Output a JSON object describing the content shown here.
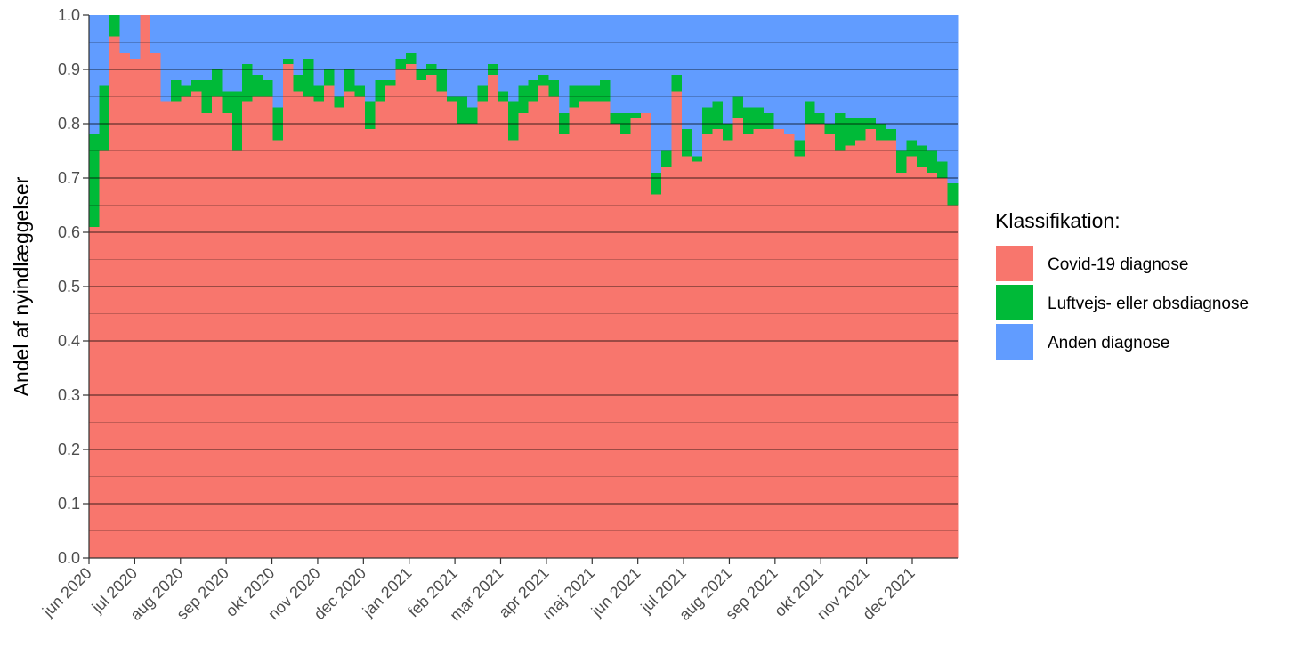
{
  "chart_data": {
    "type": "bar",
    "stacked": true,
    "title": "",
    "xlabel": "",
    "ylabel": "Andel af nyindlæggelser",
    "ylim": [
      0,
      1
    ],
    "yticks": [
      "0.0",
      "0.1",
      "0.2",
      "0.3",
      "0.4",
      "0.5",
      "0.6",
      "0.7",
      "0.8",
      "0.9",
      "1.0"
    ],
    "xtick_labels": [
      "jun 2020",
      "jul 2020",
      "aug 2020",
      "sep 2020",
      "okt 2020",
      "nov 2020",
      "dec 2020",
      "jan 2021",
      "feb 2021",
      "mar 2021",
      "apr 2021",
      "maj 2021",
      "jun 2021",
      "jul 2021",
      "aug 2021",
      "sep 2021",
      "okt 2021",
      "nov 2021",
      "dec 2021"
    ],
    "x_unit": "week",
    "grid": "horizontal",
    "legend": {
      "title": "Klassifikation:",
      "position": "right",
      "entries": [
        "Covid-19 diagnose",
        "Luftvejs- eller obsdiagnose",
        "Anden diagnose"
      ]
    },
    "colors": {
      "covid": "#F8766D",
      "luftvejs": "#00BA38",
      "anden": "#619CFF"
    },
    "series": [
      {
        "name": "Covid-19 diagnose",
        "values": [
          0.61,
          0.75,
          0.96,
          0.93,
          0.92,
          1.0,
          0.93,
          0.84,
          0.84,
          0.85,
          0.86,
          0.82,
          0.85,
          0.82,
          0.75,
          0.84,
          0.85,
          0.85,
          0.77,
          0.91,
          0.86,
          0.85,
          0.84,
          0.87,
          0.83,
          0.86,
          0.85,
          0.79,
          0.84,
          0.87,
          0.9,
          0.91,
          0.88,
          0.89,
          0.86,
          0.84,
          0.8,
          0.8,
          0.84,
          0.89,
          0.84,
          0.77,
          0.82,
          0.84,
          0.87,
          0.85,
          0.78,
          0.83,
          0.84,
          0.84,
          0.84,
          0.8,
          0.78,
          0.81,
          0.82,
          0.67,
          0.72,
          0.86,
          0.74,
          0.73,
          0.78,
          0.79,
          0.77,
          0.81,
          0.78,
          0.79,
          0.79,
          0.79,
          0.78,
          0.74,
          0.8,
          0.8,
          0.78,
          0.75,
          0.76,
          0.77,
          0.79,
          0.77,
          0.77,
          0.71,
          0.74,
          0.72,
          0.71,
          0.7,
          0.65
        ]
      },
      {
        "name": "Luftvejs- eller obsdiagnose",
        "values": [
          0.17,
          0.12,
          0.04,
          0.0,
          0.0,
          0.0,
          0.0,
          0.0,
          0.04,
          0.02,
          0.02,
          0.06,
          0.05,
          0.04,
          0.11,
          0.07,
          0.04,
          0.03,
          0.06,
          0.01,
          0.03,
          0.07,
          0.03,
          0.03,
          0.02,
          0.04,
          0.02,
          0.05,
          0.04,
          0.01,
          0.02,
          0.02,
          0.02,
          0.02,
          0.04,
          0.01,
          0.05,
          0.03,
          0.03,
          0.02,
          0.02,
          0.07,
          0.05,
          0.04,
          0.02,
          0.03,
          0.04,
          0.04,
          0.03,
          0.03,
          0.04,
          0.02,
          0.04,
          0.01,
          0.0,
          0.04,
          0.03,
          0.03,
          0.05,
          0.01,
          0.05,
          0.05,
          0.03,
          0.04,
          0.05,
          0.04,
          0.03,
          0.0,
          0.0,
          0.03,
          0.04,
          0.02,
          0.02,
          0.07,
          0.05,
          0.04,
          0.02,
          0.03,
          0.02,
          0.04,
          0.03,
          0.04,
          0.04,
          0.03,
          0.04
        ]
      },
      {
        "name": "Anden diagnose",
        "values": [
          0.22,
          0.13,
          0.0,
          0.07,
          0.08,
          0.0,
          0.07,
          0.16,
          0.12,
          0.13,
          0.12,
          0.12,
          0.1,
          0.14,
          0.14,
          0.09,
          0.11,
          0.12,
          0.17,
          0.08,
          0.11,
          0.08,
          0.13,
          0.1,
          0.15,
          0.1,
          0.13,
          0.16,
          0.12,
          0.12,
          0.08,
          0.07,
          0.1,
          0.09,
          0.1,
          0.15,
          0.15,
          0.17,
          0.13,
          0.09,
          0.14,
          0.16,
          0.13,
          0.12,
          0.11,
          0.12,
          0.18,
          0.13,
          0.13,
          0.13,
          0.12,
          0.18,
          0.18,
          0.18,
          0.18,
          0.29,
          0.25,
          0.11,
          0.21,
          0.26,
          0.17,
          0.16,
          0.2,
          0.15,
          0.17,
          0.17,
          0.18,
          0.21,
          0.22,
          0.23,
          0.16,
          0.18,
          0.2,
          0.18,
          0.19,
          0.19,
          0.19,
          0.2,
          0.21,
          0.25,
          0.23,
          0.24,
          0.25,
          0.27,
          0.31
        ]
      }
    ]
  }
}
